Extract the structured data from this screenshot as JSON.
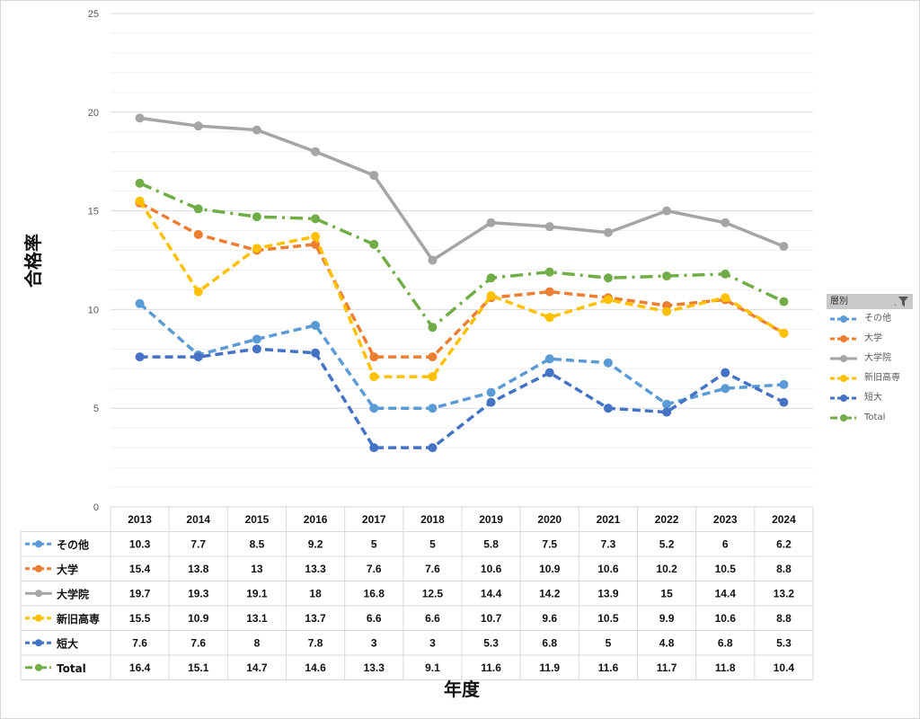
{
  "chart_data": {
    "type": "line",
    "categories": [
      "2013",
      "2014",
      "2015",
      "2016",
      "2017",
      "2018",
      "2019",
      "2020",
      "2021",
      "2022",
      "2023",
      "2024"
    ],
    "series": [
      {
        "name": "その他",
        "color": "#5b9bd5",
        "dash": "dash",
        "values": [
          10.3,
          7.7,
          8.5,
          9.2,
          5,
          5,
          5.8,
          7.5,
          7.3,
          5.2,
          6,
          6.2
        ]
      },
      {
        "name": "大学",
        "color": "#ed7d31",
        "dash": "dash",
        "values": [
          15.4,
          13.8,
          13,
          13.3,
          7.6,
          7.6,
          10.6,
          10.9,
          10.6,
          10.2,
          10.5,
          8.8
        ]
      },
      {
        "name": "大学院",
        "color": "#a5a5a5",
        "dash": "solid",
        "values": [
          19.7,
          19.3,
          19.1,
          18,
          16.8,
          12.5,
          14.4,
          14.2,
          13.9,
          15,
          14.4,
          13.2
        ]
      },
      {
        "name": "新旧高専",
        "color": "#ffc000",
        "dash": "dash",
        "values": [
          15.5,
          10.9,
          13.1,
          13.7,
          6.6,
          6.6,
          10.7,
          9.6,
          10.5,
          9.9,
          10.6,
          8.8
        ]
      },
      {
        "name": "短大",
        "color": "#4472c4",
        "dash": "dash",
        "values": [
          7.6,
          7.6,
          8,
          7.8,
          3,
          3,
          5.3,
          6.8,
          5,
          4.8,
          6.8,
          5.3
        ]
      },
      {
        "name": "Total",
        "color": "#70ad47",
        "dash": "dashdot",
        "values": [
          16.4,
          15.1,
          14.7,
          14.6,
          13.3,
          9.1,
          11.6,
          11.9,
          11.6,
          11.7,
          11.8,
          10.4
        ]
      }
    ],
    "ylabel": "合格率",
    "xlabel": "年度",
    "ylim": [
      0,
      25
    ],
    "yticks": [
      0,
      5,
      10,
      15,
      20,
      25
    ],
    "grid": true,
    "data_table": true,
    "legend_position": "right",
    "legend_title": "層別",
    "filter_icon": "filter-icon"
  }
}
